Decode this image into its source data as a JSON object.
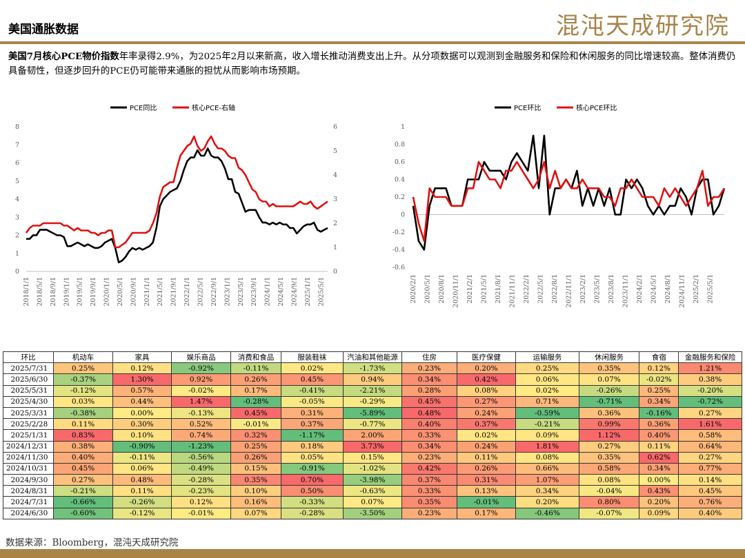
{
  "header": {
    "title": "美国通胀数据",
    "brand": "混沌天成研究院"
  },
  "summary": {
    "bold": "美国7月核心PCE物价指数",
    "text": "年率录得2.9%，为2025年2月以来新高，收入增长推动消费支出上升。从分项数据可以观测到金融服务和保险和休闲服务的同比增速较高。整体消费仍具备韧性，但逐步回升的PCE仍可能带来通胀的担忧从而影响市场预期。"
  },
  "colors": {
    "black": "#000000",
    "red": "#e01010",
    "accent": "#a8844a"
  },
  "chart_data": [
    {
      "type": "line",
      "x_ticks": [
        "2018/1/1",
        "2018/5/1",
        "2018/9/1",
        "2019/1/1",
        "2019/5/1",
        "2019/9/1",
        "2020/1/1",
        "2020/5/1",
        "2020/9/1",
        "2021/1/1",
        "2021/5/1",
        "2021/9/1",
        "2022/1/1",
        "2022/5/1",
        "2022/9/1",
        "2023/1/1",
        "2023/5/1",
        "2023/9/1",
        "2024/1/1",
        "2024/5/1",
        "2024/9/1",
        "2025/1/1",
        "2025/5/1"
      ],
      "ylim_left": [
        0,
        8
      ],
      "y_ticks_left": [
        "0",
        "1",
        "2",
        "3",
        "4",
        "5",
        "6",
        "7",
        "8"
      ],
      "ylim_right": [
        0,
        6
      ],
      "y_ticks_right": [
        "0",
        "1",
        "2",
        "3",
        "4",
        "5",
        "6"
      ],
      "legend": "top",
      "series": [
        {
          "name": "PCE同比",
          "axis": "left",
          "color": "#000000",
          "values": [
            1.8,
            1.8,
            2.0,
            2.0,
            2.3,
            2.3,
            2.3,
            2.2,
            2.1,
            2.0,
            2.0,
            1.9,
            1.4,
            1.4,
            1.5,
            1.6,
            1.5,
            1.4,
            1.5,
            1.4,
            1.3,
            1.3,
            1.4,
            1.6,
            1.7,
            1.8,
            1.3,
            0.5,
            0.6,
            0.8,
            1.1,
            1.3,
            1.2,
            1.3,
            1.2,
            1.3,
            1.4,
            1.6,
            2.4,
            3.6,
            4.0,
            4.2,
            4.4,
            4.5,
            4.6,
            5.0,
            5.6,
            6.1,
            6.3,
            6.3,
            6.7,
            6.4,
            6.4,
            6.8,
            6.4,
            6.3,
            6.3,
            6.1,
            5.7,
            5.1,
            5.1,
            4.4,
            4.3,
            3.8,
            3.3,
            3.4,
            3.4,
            3.4,
            3.0,
            2.7,
            2.7,
            2.6,
            2.7,
            2.6,
            2.7,
            2.6,
            2.6,
            2.4,
            2.4,
            2.1,
            2.3,
            2.5,
            2.6,
            2.6,
            2.7,
            2.3,
            2.2,
            2.3,
            2.4
          ]
        },
        {
          "name": "核心PCE-右轴",
          "axis": "right",
          "color": "#e01010",
          "values": [
            1.6,
            1.8,
            1.9,
            1.9,
            1.9,
            2.0,
            2.0,
            2.0,
            2.0,
            2.0,
            2.0,
            1.9,
            1.9,
            1.8,
            1.7,
            1.8,
            1.7,
            1.7,
            1.7,
            1.6,
            1.6,
            1.5,
            1.6,
            1.6,
            1.7,
            1.7,
            1.0,
            1.0,
            1.1,
            1.2,
            1.4,
            1.6,
            1.6,
            1.6,
            1.6,
            1.6,
            1.7,
            2.0,
            2.4,
            3.1,
            3.5,
            3.6,
            3.7,
            3.7,
            4.3,
            4.8,
            5.0,
            5.2,
            5.3,
            5.6,
            5.2,
            5.0,
            5.1,
            5.4,
            5.6,
            5.3,
            5.1,
            5.1,
            5.0,
            4.8,
            4.7,
            4.7,
            4.3,
            4.2,
            4.0,
            3.7,
            3.4,
            3.3,
            3.0,
            2.9,
            2.9,
            2.7,
            2.8,
            2.7,
            2.7,
            2.7,
            2.7,
            2.7,
            2.7,
            2.8,
            2.9,
            2.8,
            2.8,
            2.9,
            2.7,
            2.6,
            2.7,
            2.8,
            2.9
          ]
        }
      ]
    },
    {
      "type": "line",
      "x_ticks": [
        "2020/2/1",
        "2020/5/1",
        "2020/8/1",
        "2020/11/1",
        "2021/2/1",
        "2021/5/1",
        "2021/8/1",
        "2021/11/1",
        "2022/2/1",
        "2022/5/1",
        "2022/8/1",
        "2022/11/1",
        "2023/2/1",
        "2023/5/1",
        "2023/8/1",
        "2023/11/1",
        "2024/2/1",
        "2024/5/1",
        "2024/8/1",
        "2024/11/1",
        "2025/2/1",
        "2025/5/1"
      ],
      "ylim": [
        -0.6,
        1
      ],
      "y_ticks": [
        "-0.6",
        "-0.4",
        "-0.2",
        "0",
        "0.2",
        "0.4",
        "0.6",
        "0.8",
        "1"
      ],
      "legend": "top",
      "series": [
        {
          "name": "PCE环比",
          "color": "#000000",
          "values": [
            0.1,
            -0.3,
            -0.4,
            0.1,
            0.3,
            0.3,
            0.3,
            0.1,
            0.1,
            0.1,
            0.4,
            0.4,
            0.4,
            0.6,
            0.5,
            0.5,
            0.5,
            0.4,
            0.6,
            0.7,
            0.6,
            0.5,
            0.9,
            0.3,
            0.9,
            0.0,
            0.3,
            0.3,
            0.4,
            0.3,
            0.5,
            0.1,
            0.3,
            0.1,
            0.3,
            0.1,
            0.3,
            0.0,
            0.0,
            0.4,
            0.3,
            0.4,
            0.3,
            0.1,
            0.0,
            0.1,
            0.0,
            0.1,
            0.1,
            0.3,
            0.2,
            0.0,
            0.3,
            0.4,
            0.4,
            0.0,
            0.1,
            0.3
          ]
        },
        {
          "name": "核心PCE环比",
          "color": "#e01010",
          "values": [
            0.2,
            -0.1,
            -0.3,
            0.3,
            0.2,
            0.2,
            0.2,
            0.1,
            0.1,
            0.1,
            0.3,
            0.3,
            0.6,
            0.5,
            0.4,
            0.4,
            0.3,
            0.5,
            0.5,
            0.6,
            0.5,
            0.4,
            0.3,
            0.4,
            0.6,
            0.3,
            0.5,
            0.3,
            0.4,
            0.3,
            0.3,
            0.4,
            0.3,
            0.3,
            0.3,
            0.2,
            0.2,
            0.1,
            0.3,
            0.3,
            0.4,
            0.3,
            0.2,
            0.2,
            0.2,
            0.1,
            0.3,
            0.2,
            0.3,
            0.2,
            0.1,
            0.2,
            0.3,
            0.5,
            0.1,
            0.2,
            0.2,
            0.3
          ]
        }
      ]
    },
    {
      "type": "table",
      "columns": [
        "环比",
        "机动车",
        "家具",
        "娱乐商品",
        "消费和食品",
        "服装鞋袜",
        "汽油和其他能源",
        "住房",
        "医疗保健",
        "运输服务",
        "休闲服务",
        "食宿",
        "金融服务和保险"
      ],
      "rows": [
        [
          "2025/7/31",
          "0.25%",
          "0.12%",
          "-0.92%",
          "-0.11%",
          "0.02%",
          "-1.73%",
          "0.23%",
          "0.20%",
          "0.25%",
          "0.35%",
          "0.12%",
          "1.21%"
        ],
        [
          "2025/6/30",
          "-0.37%",
          "1.30%",
          "0.92%",
          "0.26%",
          "0.45%",
          "0.94%",
          "0.34%",
          "0.42%",
          "0.06%",
          "0.07%",
          "-0.02%",
          "0.38%"
        ],
        [
          "2025/5/31",
          "-0.12%",
          "0.57%",
          "-0.02%",
          "0.17%",
          "-0.41%",
          "-2.21%",
          "0.28%",
          "0.08%",
          "0.02%",
          "-0.26%",
          "0.25%",
          "-0.20%"
        ],
        [
          "2025/4/30",
          "0.03%",
          "0.44%",
          "1.47%",
          "-0.28%",
          "-0.05%",
          "-0.29%",
          "0.45%",
          "0.27%",
          "0.71%",
          "-0.71%",
          "0.34%",
          "-0.72%"
        ],
        [
          "2025/3/31",
          "-0.38%",
          "0.00%",
          "-0.13%",
          "0.45%",
          "0.31%",
          "-5.89%",
          "0.48%",
          "0.24%",
          "-0.59%",
          "0.36%",
          "-0.16%",
          "0.27%"
        ],
        [
          "2025/2/28",
          "0.11%",
          "0.30%",
          "0.52%",
          "-0.01%",
          "0.37%",
          "-0.77%",
          "0.40%",
          "0.37%",
          "-0.21%",
          "0.99%",
          "0.36%",
          "1.61%"
        ],
        [
          "2025/1/31",
          "0.83%",
          "0.10%",
          "0.74%",
          "0.32%",
          "-1.17%",
          "2.00%",
          "0.33%",
          "0.02%",
          "0.09%",
          "1.12%",
          "0.40%",
          "0.58%"
        ],
        [
          "2024/12/31",
          "0.38%",
          "-0.90%",
          "-1.23%",
          "0.25%",
          "0.18%",
          "3.73%",
          "0.34%",
          "0.24%",
          "1.81%",
          "0.27%",
          "0.11%",
          "0.64%"
        ],
        [
          "2024/11/30",
          "0.40%",
          "-0.11%",
          "-0.56%",
          "0.26%",
          "0.05%",
          "0.15%",
          "0.23%",
          "0.11%",
          "0.08%",
          "0.35%",
          "0.62%",
          "0.27%"
        ],
        [
          "2024/10/31",
          "0.45%",
          "0.06%",
          "-0.49%",
          "0.15%",
          "-0.91%",
          "-1.02%",
          "0.42%",
          "0.26%",
          "0.66%",
          "0.58%",
          "0.34%",
          "0.77%"
        ],
        [
          "2024/9/30",
          "0.27%",
          "0.48%",
          "-0.28%",
          "0.35%",
          "0.70%",
          "-3.98%",
          "0.37%",
          "0.31%",
          "1.07%",
          "0.08%",
          "0.00%",
          "0.14%"
        ],
        [
          "2024/8/31",
          "-0.21%",
          "0.11%",
          "-0.23%",
          "0.10%",
          "0.50%",
          "-0.63%",
          "0.33%",
          "0.13%",
          "0.34%",
          "-0.04%",
          "0.43%",
          "0.45%"
        ],
        [
          "2024/7/31",
          "-0.66%",
          "-0.26%",
          "0.12%",
          "0.16%",
          "-0.33%",
          "0.07%",
          "0.35%",
          "-0.01%",
          "0.20%",
          "0.80%",
          "0.20%",
          "0.76%"
        ],
        [
          "2024/6/30",
          "-0.60%",
          "-0.12%",
          "-0.01%",
          "0.07%",
          "-0.28%",
          "-3.50%",
          "0.23%",
          "0.17%",
          "-0.46%",
          "-0.07%",
          "0.09%",
          "0.40%"
        ]
      ]
    }
  ],
  "footer": {
    "source": "数据来源：Bloomberg，混沌天成研究院"
  }
}
